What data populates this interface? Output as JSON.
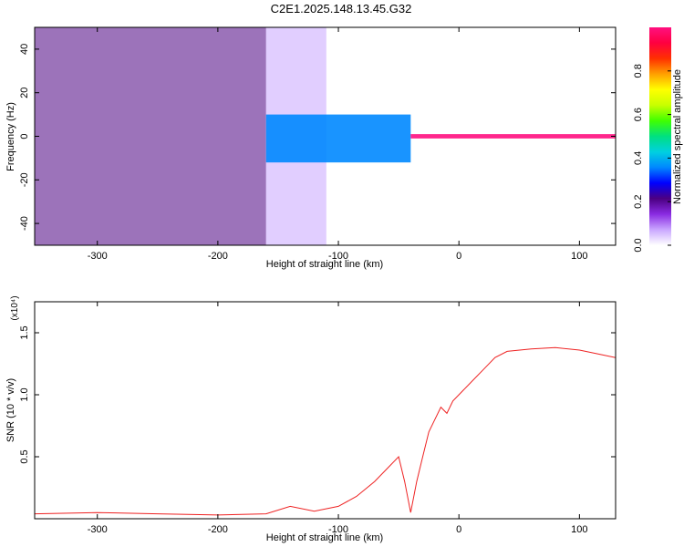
{
  "title": "C2E1.2025.148.13.45.G32",
  "chart_data": [
    {
      "type": "heatmap",
      "xlabel": "Height of straight line (km)",
      "ylabel": "Frequency (Hz)",
      "xlim": [
        -352,
        130
      ],
      "ylim": [
        -50,
        50
      ],
      "xticks": [
        -300,
        -200,
        -100,
        0,
        100
      ],
      "yticks": [
        -40,
        -20,
        0,
        20,
        40
      ],
      "colorbar": {
        "label": "Normalized spectral amplitude",
        "range": [
          0,
          1
        ],
        "ticks": [
          0.0,
          0.2,
          0.4,
          0.6,
          0.8
        ],
        "colors": [
          "#ffffff",
          "#c9a6ff",
          "#8a2be2",
          "#4b0082",
          "#0000ff",
          "#0088ff",
          "#00d0e0",
          "#00e080",
          "#40ff00",
          "#c8ff00",
          "#ffff00",
          "#ffa000",
          "#ff3000",
          "#ff0040",
          "#ff1080"
        ]
      },
      "regions": [
        {
          "x": [
            -352,
            -160
          ],
          "freq": [
            -50,
            50
          ],
          "amplitude": 0.2
        },
        {
          "x": [
            -160,
            -110
          ],
          "freq": [
            -50,
            50
          ],
          "amplitude": 0.08
        },
        {
          "x": [
            -160,
            -40
          ],
          "freq": [
            -12,
            10
          ],
          "amplitude": 0.35
        },
        {
          "x": [
            -40,
            130
          ],
          "freq": [
            -1,
            1
          ],
          "amplitude": 1.0
        }
      ]
    },
    {
      "type": "line",
      "xlabel": "Height of straight line (km)",
      "ylabel": "SNR (10 * v/v)",
      "y_multiplier": "(x10⁴)",
      "xlim": [
        -352,
        130
      ],
      "ylim": [
        0,
        1.75
      ],
      "xticks": [
        -300,
        -200,
        -100,
        0,
        100
      ],
      "yticks": [
        0.5,
        1.0,
        1.5
      ],
      "ytick_labels": [
        "0.5",
        "1.0",
        "1.5"
      ],
      "line_color": "#ee2222",
      "x": [
        -352,
        -300,
        -250,
        -200,
        -160,
        -140,
        -120,
        -100,
        -85,
        -70,
        -60,
        -50,
        -45,
        -40,
        -35,
        -30,
        -25,
        -20,
        -15,
        -10,
        -5,
        0,
        10,
        20,
        30,
        40,
        60,
        80,
        100,
        115,
        130
      ],
      "y": [
        0.04,
        0.05,
        0.04,
        0.03,
        0.04,
        0.1,
        0.06,
        0.1,
        0.18,
        0.3,
        0.4,
        0.5,
        0.3,
        0.05,
        0.3,
        0.5,
        0.7,
        0.8,
        0.9,
        0.85,
        0.95,
        1.0,
        1.1,
        1.2,
        1.3,
        1.35,
        1.37,
        1.38,
        1.36,
        1.33,
        1.3
      ]
    }
  ]
}
